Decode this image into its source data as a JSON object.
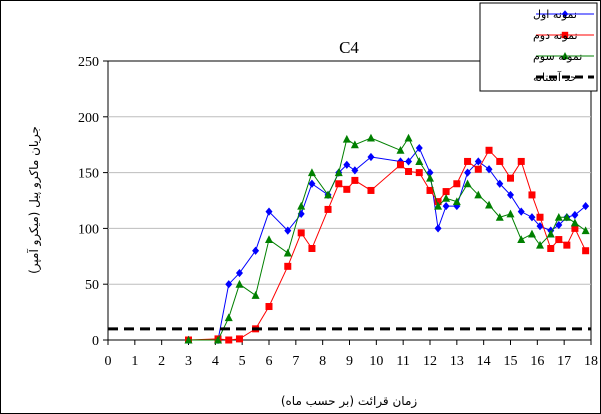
{
  "chart_data": {
    "type": "line",
    "title": "C4",
    "xlabel": "زمان قرائت (بر حسب ماه)",
    "ylabel": "جریان ماکرو پیل (میکرو آمپر)",
    "xlim": [
      0,
      18
    ],
    "ylim": [
      0,
      250
    ],
    "xticks": [
      0,
      1,
      2,
      3,
      4,
      5,
      6,
      7,
      8,
      9,
      10,
      11,
      12,
      13,
      14,
      15,
      16,
      17,
      18
    ],
    "yticks": [
      0,
      50,
      100,
      150,
      200,
      250
    ],
    "grid": "horizontal",
    "legend_position": "top-right",
    "series": [
      {
        "name": "نمونه اول",
        "color": "#0000ff",
        "marker": "diamond",
        "points": [
          [
            3,
            0
          ],
          [
            4.1,
            0
          ],
          [
            4.5,
            50
          ],
          [
            4.9,
            60
          ],
          [
            5.5,
            80
          ],
          [
            6,
            115
          ],
          [
            6.7,
            98
          ],
          [
            7.2,
            113
          ],
          [
            7.6,
            140
          ],
          [
            8.2,
            130
          ],
          [
            8.6,
            150
          ],
          [
            8.9,
            157
          ],
          [
            9.2,
            152
          ],
          [
            9.8,
            164
          ],
          [
            10.9,
            160
          ],
          [
            11.2,
            160
          ],
          [
            11.6,
            172
          ],
          [
            12,
            150
          ],
          [
            12.3,
            100
          ],
          [
            12.6,
            120
          ],
          [
            13,
            120
          ],
          [
            13.4,
            150
          ],
          [
            13.8,
            160
          ],
          [
            14.2,
            153
          ],
          [
            14.6,
            140
          ],
          [
            15,
            130
          ],
          [
            15.4,
            115
          ],
          [
            15.8,
            110
          ],
          [
            16.1,
            102
          ],
          [
            16.5,
            98
          ],
          [
            16.8,
            103
          ],
          [
            17.1,
            110
          ],
          [
            17.4,
            112
          ],
          [
            17.8,
            120
          ]
        ]
      },
      {
        "name": "نمونه دوم",
        "color": "#ff0000",
        "marker": "square",
        "points": [
          [
            3,
            0
          ],
          [
            4.1,
            1
          ],
          [
            4.5,
            0
          ],
          [
            4.9,
            1
          ],
          [
            5.5,
            10
          ],
          [
            6,
            30
          ],
          [
            6.7,
            66
          ],
          [
            7.2,
            96
          ],
          [
            7.6,
            82
          ],
          [
            8.2,
            117
          ],
          [
            8.6,
            140
          ],
          [
            8.9,
            135
          ],
          [
            9.2,
            143
          ],
          [
            9.8,
            134
          ],
          [
            10.9,
            157
          ],
          [
            11.2,
            151
          ],
          [
            11.6,
            150
          ],
          [
            12,
            134
          ],
          [
            12.3,
            124
          ],
          [
            12.6,
            133
          ],
          [
            13,
            140
          ],
          [
            13.4,
            160
          ],
          [
            13.8,
            153
          ],
          [
            14.2,
            170
          ],
          [
            14.6,
            160
          ],
          [
            15,
            145
          ],
          [
            15.4,
            160
          ],
          [
            15.8,
            130
          ],
          [
            16.1,
            110
          ],
          [
            16.5,
            82
          ],
          [
            16.8,
            90
          ],
          [
            17.1,
            85
          ],
          [
            17.4,
            100
          ],
          [
            17.8,
            80
          ]
        ]
      },
      {
        "name": "نمونه سوم",
        "color": "#008000",
        "marker": "triangle",
        "points": [
          [
            3,
            0
          ],
          [
            4.1,
            0
          ],
          [
            4.5,
            20
          ],
          [
            4.9,
            50
          ],
          [
            5.5,
            40
          ],
          [
            6,
            90
          ],
          [
            6.7,
            78
          ],
          [
            7.2,
            120
          ],
          [
            7.6,
            150
          ],
          [
            8.2,
            130
          ],
          [
            8.6,
            150
          ],
          [
            8.9,
            180
          ],
          [
            9.2,
            175
          ],
          [
            9.8,
            181
          ],
          [
            10.9,
            170
          ],
          [
            11.2,
            181
          ],
          [
            11.6,
            160
          ],
          [
            12,
            145
          ],
          [
            12.3,
            120
          ],
          [
            12.6,
            127
          ],
          [
            13,
            124
          ],
          [
            13.4,
            140
          ],
          [
            13.8,
            130
          ],
          [
            14.2,
            121
          ],
          [
            14.6,
            110
          ],
          [
            15,
            113
          ],
          [
            15.4,
            90
          ],
          [
            15.8,
            95
          ],
          [
            16.1,
            85
          ],
          [
            16.5,
            95
          ],
          [
            16.8,
            110
          ],
          [
            17.1,
            110
          ],
          [
            17.4,
            105
          ],
          [
            17.8,
            98
          ]
        ]
      },
      {
        "name": "حد آستانه",
        "color": "#000000",
        "style": "dashed",
        "points": [
          [
            0,
            10
          ],
          [
            18,
            10
          ]
        ]
      }
    ]
  }
}
